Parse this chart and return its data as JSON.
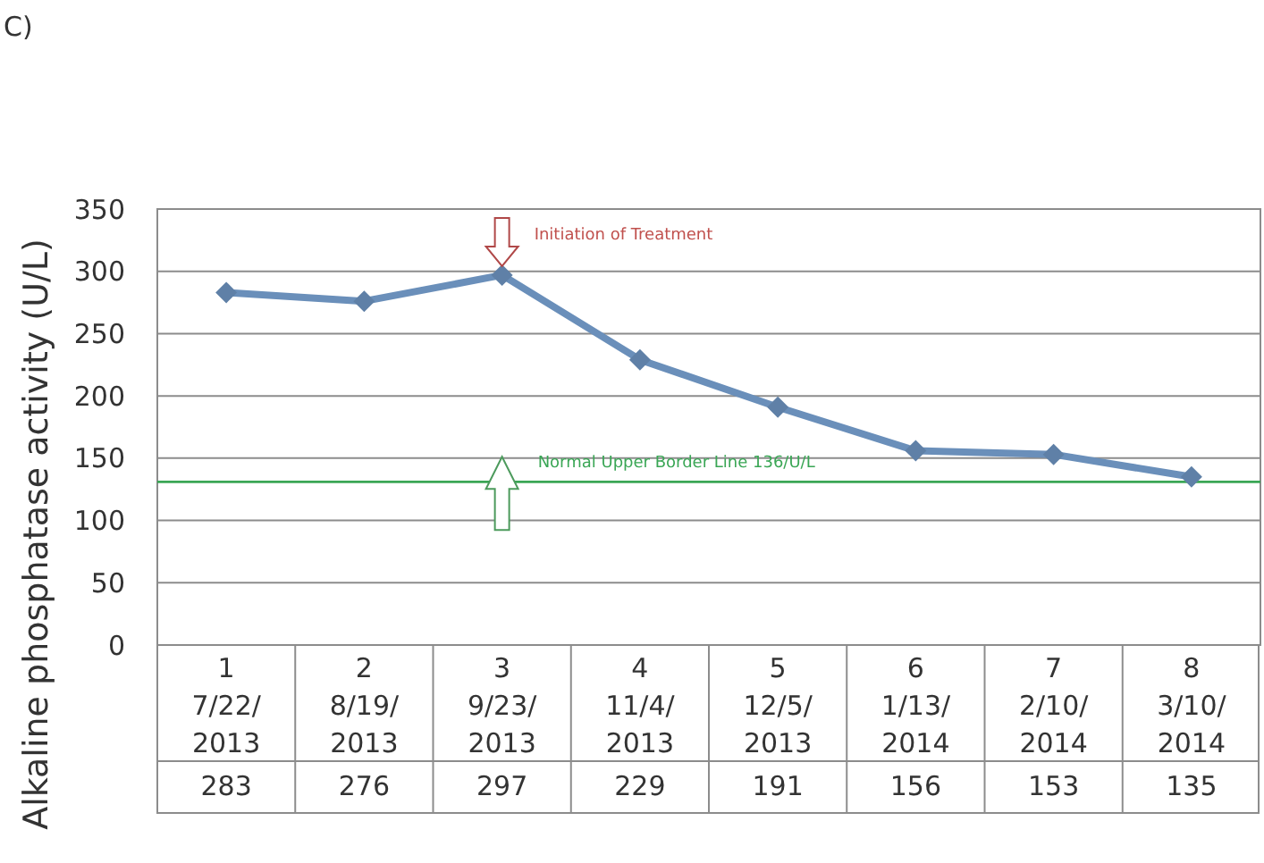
{
  "chart_data": {
    "type": "line",
    "ylabel": "Alkaline phosphatase activity (U/L)",
    "categories": [
      "1\n7/22/\n2013",
      "2\n8/19/\n2013",
      "3\n9/23/\n2013",
      "4\n11/4/\n2013",
      "5\n12/5/\n2013",
      "6\n1/13/\n2014",
      "7\n2/10/\n2014",
      "8\n3/10/\n2014"
    ],
    "series": [
      {
        "color": "#6a8fba",
        "values": [
          283,
          276,
          297,
          229,
          191,
          156,
          153,
          135
        ]
      }
    ],
    "ylim": [
      0,
      350
    ],
    "yticks": [
      0,
      50,
      100,
      150,
      200,
      250,
      300,
      350
    ],
    "grid": "y",
    "marker": "diamond",
    "line_style": "solid",
    "data_labels": true,
    "ref_lines": [
      {
        "axis": "y",
        "value": 131,
        "label": "Normal Upper Border Line 136/U/L",
        "color": "#3aa655"
      }
    ],
    "annotations": [
      "C)",
      {
        "text": "Initiation of Treatment",
        "x": "3\n9/23/\n2013",
        "y": 297
      }
    ]
  }
}
